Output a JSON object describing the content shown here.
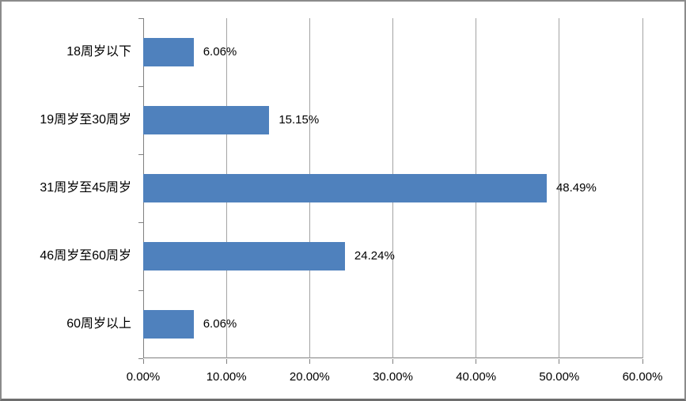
{
  "chart_data": {
    "type": "bar",
    "orientation": "horizontal",
    "title": "",
    "xlabel": "",
    "ylabel": "",
    "categories": [
      "18周岁以下",
      "19周岁至30周岁",
      "31周岁至45周岁",
      "46周岁至60周岁",
      "60周岁以上"
    ],
    "values": [
      6.06,
      15.15,
      48.49,
      24.24,
      6.06
    ],
    "value_labels": [
      "6.06%",
      "15.15%",
      "48.49%",
      "24.24%",
      "6.06%"
    ],
    "xlim": [
      0,
      60
    ],
    "x_ticks": [
      {
        "value": 0,
        "label": "0.00%"
      },
      {
        "value": 10,
        "label": "10.00%"
      },
      {
        "value": 20,
        "label": "20.00%"
      },
      {
        "value": 30,
        "label": "30.00%"
      },
      {
        "value": 40,
        "label": "40.00%"
      },
      {
        "value": 50,
        "label": "50.00%"
      },
      {
        "value": 60,
        "label": "60.00%"
      }
    ],
    "grid": true,
    "legend": false,
    "colors": {
      "bar": "#4F81BD",
      "gridline": "#A3A3A3",
      "axis": "#808080",
      "tick": "#808080",
      "text": "#000000",
      "frame_border": "#8B8B8B",
      "background": "#FFFFFF"
    }
  }
}
